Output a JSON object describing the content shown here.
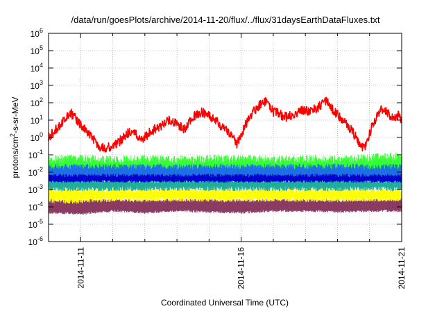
{
  "chart_data": {
    "type": "line",
    "title": "/data/run/goesPlots/archive/2014-11-20/flux/../flux/31daysEarthDataFluxes.txt",
    "xlabel": "Coordinated Universal Time (UTC)",
    "ylabel": {
      "prefix": "protons/cm",
      "sup": "2",
      "suffix": "-s-sr-MeV"
    },
    "xlim": [
      "2014-11-10",
      "2014-11-21"
    ],
    "x_ticks": [
      {
        "date": "2014-11-11",
        "label": "2014-11-11"
      },
      {
        "date": "2014-11-16",
        "label": "2014-11-16"
      },
      {
        "date": "2014-11-21",
        "label": "2014-11-21"
      }
    ],
    "x_minor_grid_days": [
      12,
      13,
      14,
      15,
      17,
      18,
      19,
      20
    ],
    "y_scale": "log",
    "ylim": [
      1e-06,
      1000000.0
    ],
    "y_ticks": [
      {
        "value": 1e-06,
        "base": "10",
        "exp": "-6"
      },
      {
        "value": 1e-05,
        "base": "10",
        "exp": "-5"
      },
      {
        "value": 0.0001,
        "base": "10",
        "exp": "-4"
      },
      {
        "value": 0.001,
        "base": "10",
        "exp": "-3"
      },
      {
        "value": 0.01,
        "base": "10",
        "exp": "-2"
      },
      {
        "value": 0.1,
        "base": "10",
        "exp": "-1"
      },
      {
        "value": 1,
        "base": "10",
        "exp": "0"
      },
      {
        "value": 10,
        "base": "10",
        "exp": "1"
      },
      {
        "value": 100,
        "base": "10",
        "exp": "2"
      },
      {
        "value": 1000,
        "base": "10",
        "exp": "3"
      },
      {
        "value": 10000,
        "base": "10",
        "exp": "4"
      },
      {
        "value": 100000,
        "base": "10",
        "exp": "5"
      },
      {
        "value": 1000000,
        "base": "10",
        "exp": "6"
      }
    ],
    "grid": true,
    "series": [
      {
        "color": "#8b3a62",
        "fill_to_floor": true,
        "x": [
          "2014-11-10",
          "2014-11-11",
          "2014-11-12",
          "2014-11-13",
          "2014-11-14",
          "2014-11-15",
          "2014-11-16",
          "2014-11-17",
          "2014-11-18",
          "2014-11-19",
          "2014-11-20",
          "2014-11-21"
        ],
        "y": [
          0.00015,
          0.00014,
          0.00015,
          0.00014,
          0.00015,
          0.00015,
          0.00014,
          0.00015,
          0.00015,
          0.00014,
          0.00015,
          0.00015
        ],
        "y_low": [
          4e-05,
          3.5e-05,
          5e-05,
          4e-05,
          5e-05,
          4.5e-05,
          4e-05,
          5e-05,
          5e-05,
          4.5e-05,
          5e-05,
          5e-05
        ],
        "y_high": [
          0.0003,
          0.00028,
          0.0003,
          0.00028,
          0.0003,
          0.0003,
          0.00028,
          0.0003,
          0.0003,
          0.00028,
          0.0003,
          0.0003
        ]
      },
      {
        "color": "#ffff00",
        "x": [
          "2014-11-10",
          "2014-11-11",
          "2014-11-12",
          "2014-11-13",
          "2014-11-14",
          "2014-11-15",
          "2014-11-16",
          "2014-11-17",
          "2014-11-18",
          "2014-11-19",
          "2014-11-20",
          "2014-11-21"
        ],
        "y": [
          0.0005,
          0.0005,
          0.0005,
          0.0005,
          0.0005,
          0.0005,
          0.0005,
          0.0005,
          0.0005,
          0.0005,
          0.0005,
          0.0005
        ],
        "y_low": [
          0.00015,
          0.00015,
          0.0002,
          0.0002,
          0.0002,
          0.0002,
          0.0002,
          0.0002,
          0.0002,
          0.0002,
          0.0002,
          0.0002
        ],
        "y_high": [
          0.0012,
          0.0012,
          0.0012,
          0.0012,
          0.0012,
          0.0012,
          0.0012,
          0.0012,
          0.0012,
          0.0012,
          0.0012,
          0.0012
        ]
      },
      {
        "color": "#1fae9e",
        "x": [
          "2014-11-10",
          "2014-11-11",
          "2014-11-12",
          "2014-11-13",
          "2014-11-14",
          "2014-11-15",
          "2014-11-16",
          "2014-11-17",
          "2014-11-18",
          "2014-11-19",
          "2014-11-20",
          "2014-11-21"
        ],
        "y": [
          0.002,
          0.002,
          0.002,
          0.002,
          0.002,
          0.002,
          0.002,
          0.002,
          0.002,
          0.002,
          0.002,
          0.002
        ],
        "y_low": [
          0.0008,
          0.0008,
          0.0008,
          0.0008,
          0.0008,
          0.0008,
          0.0008,
          0.0008,
          0.0008,
          0.0008,
          0.0008,
          0.0008
        ],
        "y_high": [
          0.004,
          0.004,
          0.004,
          0.004,
          0.004,
          0.004,
          0.004,
          0.004,
          0.004,
          0.004,
          0.004,
          0.004
        ]
      },
      {
        "color": "#33ff33",
        "x": [
          "2014-11-10",
          "2014-11-11",
          "2014-11-12",
          "2014-11-13",
          "2014-11-14",
          "2014-11-15",
          "2014-11-16",
          "2014-11-17",
          "2014-11-18",
          "2014-11-19",
          "2014-11-20",
          "2014-11-21"
        ],
        "y": [
          0.02,
          0.02,
          0.02,
          0.02,
          0.02,
          0.02,
          0.02,
          0.02,
          0.02,
          0.02,
          0.02,
          0.02
        ],
        "y_low": [
          0.006,
          0.006,
          0.006,
          0.006,
          0.006,
          0.006,
          0.006,
          0.006,
          0.006,
          0.006,
          0.006,
          0.006
        ],
        "y_high": [
          0.1,
          0.1,
          0.09,
          0.1,
          0.09,
          0.1,
          0.1,
          0.09,
          0.1,
          0.09,
          0.12,
          0.15
        ]
      },
      {
        "color": "#1e6fe6",
        "x": [
          "2014-11-10",
          "2014-11-11",
          "2014-11-12",
          "2014-11-13",
          "2014-11-14",
          "2014-11-15",
          "2014-11-16",
          "2014-11-17",
          "2014-11-18",
          "2014-11-19",
          "2014-11-20",
          "2014-11-21"
        ],
        "y": [
          0.01,
          0.01,
          0.01,
          0.01,
          0.01,
          0.01,
          0.01,
          0.01,
          0.01,
          0.01,
          0.01,
          0.01
        ],
        "y_low": [
          0.003,
          0.003,
          0.003,
          0.003,
          0.003,
          0.003,
          0.003,
          0.003,
          0.003,
          0.003,
          0.003,
          0.003
        ],
        "y_high": [
          0.03,
          0.03,
          0.03,
          0.03,
          0.03,
          0.03,
          0.03,
          0.03,
          0.03,
          0.03,
          0.03,
          0.03
        ]
      },
      {
        "color": "#0000cc",
        "x": [
          "2014-11-10",
          "2014-11-11",
          "2014-11-12",
          "2014-11-13",
          "2014-11-14",
          "2014-11-15",
          "2014-11-16",
          "2014-11-17",
          "2014-11-18",
          "2014-11-19",
          "2014-11-20",
          "2014-11-21"
        ],
        "y": [
          0.004,
          0.004,
          0.004,
          0.004,
          0.004,
          0.004,
          0.004,
          0.004,
          0.004,
          0.004,
          0.004,
          0.004
        ],
        "y_low": [
          0.0025,
          0.0025,
          0.0025,
          0.0025,
          0.0025,
          0.0025,
          0.0025,
          0.0025,
          0.0025,
          0.0025,
          0.0025,
          0.0025
        ],
        "y_high": [
          0.008,
          0.008,
          0.008,
          0.008,
          0.008,
          0.008,
          0.008,
          0.008,
          0.008,
          0.008,
          0.008,
          0.008
        ]
      },
      {
        "color": "#ff0000",
        "line": true,
        "x": [
          "2014-11-10T00:00",
          "2014-11-10T06:00",
          "2014-11-10T12:00",
          "2014-11-10T16:00",
          "2014-11-10T21:00",
          "2014-11-11T03:00",
          "2014-11-11T09:00",
          "2014-11-11T14:00",
          "2014-11-11T19:00",
          "2014-11-12T02:00",
          "2014-11-12T08:00",
          "2014-11-12T12:00",
          "2014-11-12T17:00",
          "2014-11-12T22:00",
          "2014-11-13T04:00",
          "2014-11-13T12:00",
          "2014-11-13T19:00",
          "2014-11-14T01:00",
          "2014-11-14T06:00",
          "2014-11-14T12:00",
          "2014-11-14T18:00",
          "2014-11-15T00:00",
          "2014-11-15T06:00",
          "2014-11-15T11:00",
          "2014-11-15T16:00",
          "2014-11-15T21:00",
          "2014-11-16T03:00",
          "2014-11-16T09:00",
          "2014-11-16T14:00",
          "2014-11-16T19:00",
          "2014-11-17T00:00",
          "2014-11-17T06:00",
          "2014-11-17T10:00",
          "2014-11-17T16:00",
          "2014-11-17T22:00",
          "2014-11-18T04:00",
          "2014-11-18T10:00",
          "2014-11-18T16:00",
          "2014-11-18T22:00",
          "2014-11-19T04:00",
          "2014-11-19T10:00",
          "2014-11-19T15:00",
          "2014-11-19T20:00",
          "2014-11-20T02:00",
          "2014-11-20T08:00",
          "2014-11-20T14:00",
          "2014-11-20T18:00",
          "2014-11-20T22:00",
          "2014-11-21T00:00"
        ],
        "y": [
          1,
          3,
          10,
          30,
          10,
          3,
          1,
          0.3,
          0.25,
          0.35,
          1,
          2,
          1.5,
          0.8,
          2,
          5,
          10,
          5,
          3,
          15,
          30,
          20,
          8,
          3,
          1.5,
          0.4,
          5,
          30,
          80,
          120,
          30,
          20,
          15,
          25,
          40,
          30,
          60,
          120,
          30,
          10,
          3,
          0.7,
          0.2,
          5,
          40,
          25,
          10,
          20,
          10
        ]
      }
    ]
  }
}
